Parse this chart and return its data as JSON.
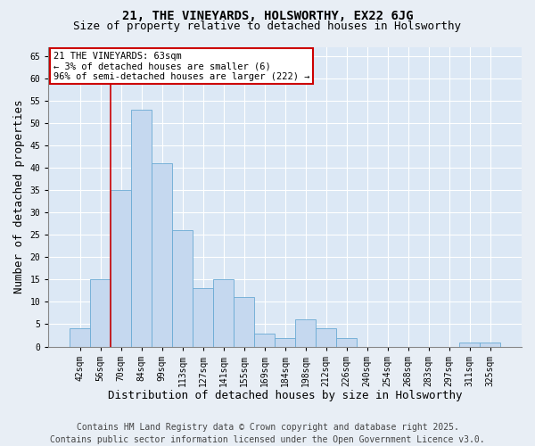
{
  "title1": "21, THE VINEYARDS, HOLSWORTHY, EX22 6JG",
  "title2": "Size of property relative to detached houses in Holsworthy",
  "xlabel": "Distribution of detached houses by size in Holsworthy",
  "ylabel": "Number of detached properties",
  "categories": [
    "42sqm",
    "56sqm",
    "70sqm",
    "84sqm",
    "99sqm",
    "113sqm",
    "127sqm",
    "141sqm",
    "155sqm",
    "169sqm",
    "184sqm",
    "198sqm",
    "212sqm",
    "226sqm",
    "240sqm",
    "254sqm",
    "268sqm",
    "283sqm",
    "297sqm",
    "311sqm",
    "325sqm"
  ],
  "values": [
    4,
    15,
    35,
    53,
    41,
    26,
    13,
    15,
    11,
    3,
    2,
    6,
    4,
    2,
    0,
    0,
    0,
    0,
    0,
    1,
    1
  ],
  "bar_color": "#c5d8ef",
  "bar_edge_color": "#6aaad4",
  "bar_width": 0.98,
  "ylim": [
    0,
    67
  ],
  "yticks": [
    0,
    5,
    10,
    15,
    20,
    25,
    30,
    35,
    40,
    45,
    50,
    55,
    60,
    65
  ],
  "red_line_x": 1.5,
  "annotation_text": "21 THE VINEYARDS: 63sqm\n← 3% of detached houses are smaller (6)\n96% of semi-detached houses are larger (222) →",
  "annotation_box_color": "#ffffff",
  "annotation_box_edge": "#cc0000",
  "red_line_color": "#cc0000",
  "footer1": "Contains HM Land Registry data © Crown copyright and database right 2025.",
  "footer2": "Contains public sector information licensed under the Open Government Licence v3.0.",
  "background_color": "#e8eef5",
  "plot_bg_color": "#dce8f5",
  "grid_color": "#ffffff",
  "title1_fontsize": 10,
  "title2_fontsize": 9,
  "axis_label_fontsize": 9,
  "tick_fontsize": 7,
  "footer_fontsize": 7,
  "annotation_fontsize": 7.5
}
